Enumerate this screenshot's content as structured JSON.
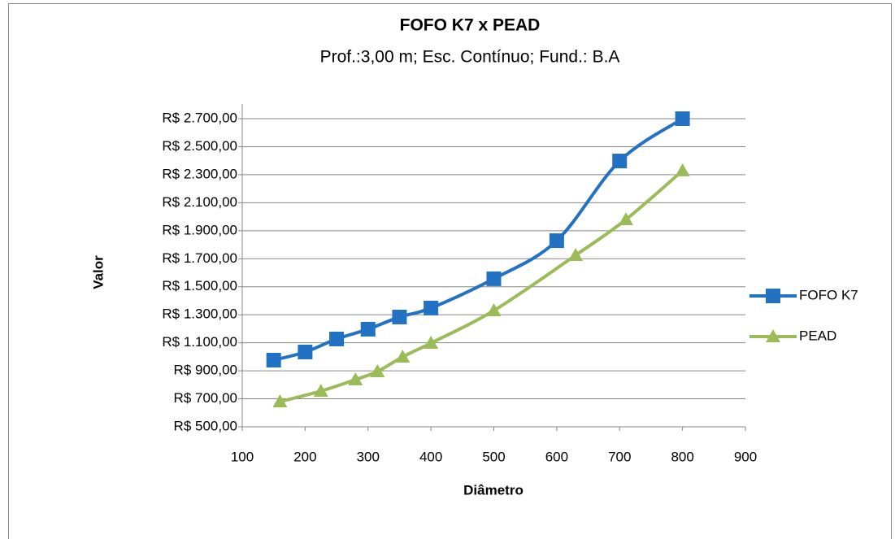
{
  "chart_data": {
    "type": "line",
    "title": "FOFO K7 x PEAD",
    "subtitle": "Prof.:3,00 m; Esc. Contínuo; Fund.: B.A",
    "xlabel": "Diâmetro",
    "ylabel": "Valor",
    "series": [
      {
        "name": "FOFO K7",
        "color": "#2271c3",
        "marker": "square",
        "x": [
          150,
          200,
          250,
          300,
          350,
          400,
          500,
          600,
          700,
          800
        ],
        "values": [
          976,
          1034,
          1127,
          1197,
          1284,
          1348,
          1557,
          1829,
          2398,
          2700
        ]
      },
      {
        "name": "PEAD",
        "color": "#9bbb59",
        "marker": "triangle",
        "x": [
          160,
          225,
          280,
          315,
          355,
          400,
          500,
          630,
          710,
          800
        ],
        "values": [
          680,
          755,
          837,
          895,
          999,
          1098,
          1330,
          1725,
          1980,
          2329
        ]
      }
    ],
    "xlim": [
      100,
      900
    ],
    "xticks": [
      100,
      200,
      300,
      400,
      500,
      600,
      700,
      800,
      900
    ],
    "ylim": [
      500,
      2700
    ],
    "yticks": [
      {
        "value": 500,
        "label": "R$ 500,00"
      },
      {
        "value": 700,
        "label": "R$ 700,00"
      },
      {
        "value": 900,
        "label": "R$ 900,00"
      },
      {
        "value": 1100,
        "label": "R$ 1.100,00"
      },
      {
        "value": 1300,
        "label": "R$ 1.300,00"
      },
      {
        "value": 1500,
        "label": "R$ 1.500,00"
      },
      {
        "value": 1700,
        "label": "R$ 1.700,00"
      },
      {
        "value": 1900,
        "label": "R$ 1.900,00"
      },
      {
        "value": 2100,
        "label": "R$ 2.100,00"
      },
      {
        "value": 2300,
        "label": "R$ 2.300,00"
      },
      {
        "value": 2500,
        "label": "R$ 2.500,00"
      },
      {
        "value": 2700,
        "label": "R$ 2.700,00"
      }
    ],
    "grid": true,
    "smooth": true,
    "legend": "right"
  }
}
